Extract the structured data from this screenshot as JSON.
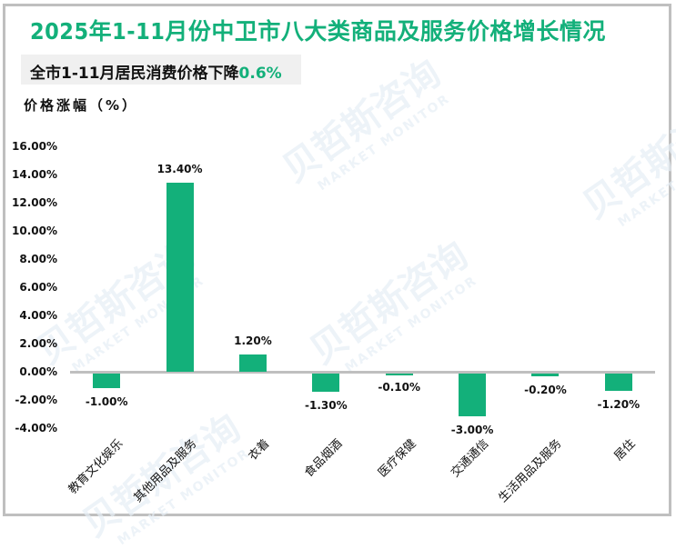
{
  "title": "2025年1-11月份中卫市八大类商品及服务价格增长情况",
  "subtitle": {
    "text": "全市1-11月居民消费价格下降",
    "highlight": "0.6%"
  },
  "y_axis_label": "价格涨幅（%）",
  "watermark": {
    "cn": "贝哲斯咨询",
    "en": "MARKET MONITOR"
  },
  "colors": {
    "bar": "#13b07a",
    "title": "#13b07a",
    "axis": "#bfbfbf",
    "border": "#bfbfbf"
  },
  "chart_data": {
    "type": "bar",
    "title": "2025年1-11月份中卫市八大类商品及服务价格增长情况",
    "subtitle": "全市1-11月居民消费价格下降0.6%",
    "xlabel": "",
    "ylabel": "价格涨幅（%）",
    "ylim": [
      -4,
      16
    ],
    "yticks": [
      "16.00%",
      "14.00%",
      "12.00%",
      "10.00%",
      "8.00%",
      "6.00%",
      "4.00%",
      "2.00%",
      "0.00%",
      "-2.00%",
      "-4.00%"
    ],
    "grid": false,
    "legend": "none",
    "categories": [
      "教育文化娱乐",
      "其他用品及服务",
      "衣着",
      "食品烟酒",
      "医疗保健",
      "交通通信",
      "生活用品及服务",
      "居住"
    ],
    "values": [
      -1.0,
      13.4,
      1.2,
      -1.3,
      -0.1,
      -3.0,
      -0.2,
      -1.2
    ],
    "data_labels": [
      "-1.00%",
      "13.40%",
      "1.20%",
      "-1.30%",
      "-0.10%",
      "-3.00%",
      "-0.20%",
      "-1.20%"
    ]
  }
}
